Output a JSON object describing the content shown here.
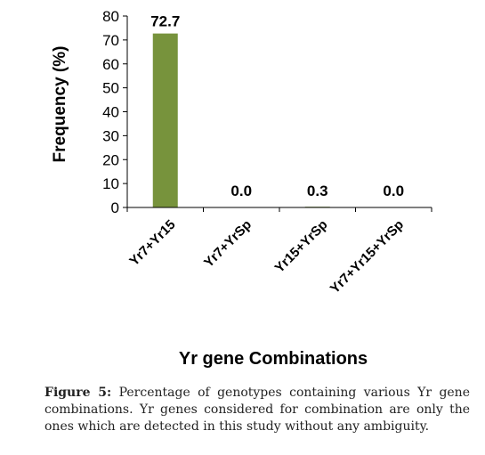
{
  "chart_data": {
    "type": "bar",
    "categories": [
      "Yr7+Yr15",
      "Yr7+YrSp",
      "Yr15+YrSp",
      "Yr7+Yr15+YrSp"
    ],
    "values": [
      72.7,
      0.0,
      0.3,
      0.0
    ],
    "value_labels": [
      "72.7",
      "0.0",
      "0.3",
      "0.0"
    ],
    "title": "",
    "xlabel": "Yr gene Combinations",
    "ylabel": "Frequency (%)",
    "ylim": [
      0,
      80
    ],
    "yticks": [
      0,
      10,
      20,
      30,
      40,
      50,
      60,
      70,
      80
    ],
    "grid": false,
    "legend": "none",
    "bar_color": "#77933c"
  },
  "caption": {
    "label": "Figure 5:",
    "text": "Percentage of genotypes containing various Yr gene combinations. Yr genes considered for combination are only the ones which are detected in this study without any ambiguity."
  }
}
